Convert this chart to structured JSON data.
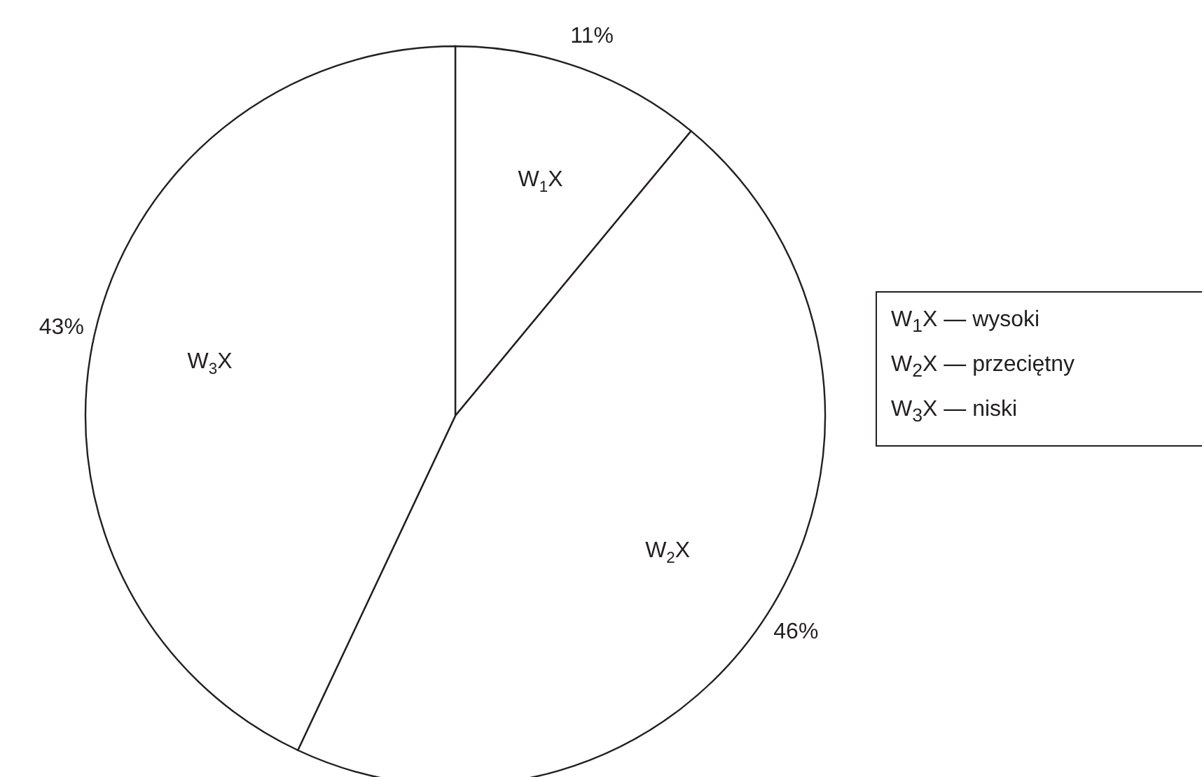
{
  "chart_data": {
    "type": "pie",
    "categories": [
      "W$_{1}$X",
      "W$_{2}$X",
      "W$_{3}$X"
    ],
    "values": [
      11,
      46,
      43
    ],
    "value_labels": [
      "11%",
      "46%",
      "43%"
    ],
    "colors": [
      "#ffffff",
      "#ffffff",
      "#ffffff"
    ],
    "annotations": [
      "W$_{1}$X — wysoki",
      "W$_{2}$X — przeciętny",
      "W$_{3}$X — niski"
    ]
  }
}
